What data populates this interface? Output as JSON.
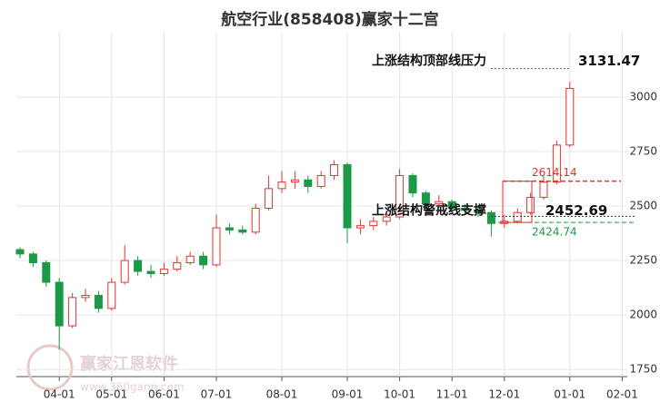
{
  "chart_data": {
    "type": "candlestick",
    "title": "航空行业(858408)赢家十二宫",
    "categories": [
      null,
      null,
      null,
      "04-01",
      null,
      null,
      null,
      "05-01",
      null,
      null,
      null,
      "06-01",
      null,
      null,
      null,
      "07-01",
      null,
      null,
      null,
      null,
      "08-01",
      null,
      null,
      null,
      null,
      "09-01",
      null,
      null,
      null,
      "10-01",
      null,
      null,
      null,
      "11-01",
      null,
      null,
      null,
      "12-01",
      null,
      null,
      null,
      null,
      "01-01",
      null,
      null,
      null,
      "02-01"
    ],
    "candles": [
      [
        2300,
        2310,
        2260,
        2280
      ],
      [
        2280,
        2290,
        2220,
        2240
      ],
      [
        2240,
        2250,
        2130,
        2150
      ],
      [
        2150,
        2170,
        1840,
        1950
      ],
      [
        1950,
        2100,
        1940,
        2080
      ],
      [
        2080,
        2120,
        2060,
        2090
      ],
      [
        2090,
        2110,
        2010,
        2030
      ],
      [
        2030,
        2170,
        2020,
        2150
      ],
      [
        2150,
        2320,
        2140,
        2250
      ],
      [
        2250,
        2270,
        2180,
        2200
      ],
      [
        2200,
        2230,
        2170,
        2190
      ],
      [
        2190,
        2240,
        2180,
        2210
      ],
      [
        2210,
        2270,
        2200,
        2240
      ],
      [
        2240,
        2290,
        2230,
        2270
      ],
      [
        2270,
        2290,
        2210,
        2230
      ],
      [
        2230,
        2460,
        2220,
        2400
      ],
      [
        2400,
        2420,
        2370,
        2390
      ],
      [
        2390,
        2410,
        2370,
        2380
      ],
      [
        2380,
        2510,
        2370,
        2490
      ],
      [
        2490,
        2640,
        2480,
        2580
      ],
      [
        2580,
        2660,
        2560,
        2610
      ],
      [
        2610,
        2660,
        2580,
        2620
      ],
      [
        2620,
        2640,
        2560,
        2590
      ],
      [
        2590,
        2660,
        2580,
        2640
      ],
      [
        2640,
        2710,
        2620,
        2690
      ],
      [
        2690,
        2700,
        2330,
        2400
      ],
      [
        2400,
        2440,
        2370,
        2410
      ],
      [
        2410,
        2450,
        2390,
        2430
      ],
      [
        2430,
        2470,
        2410,
        2450
      ],
      [
        2450,
        2670,
        2440,
        2640
      ],
      [
        2640,
        2650,
        2540,
        2560
      ],
      [
        2560,
        2570,
        2490,
        2510
      ],
      [
        2510,
        2550,
        2490,
        2520
      ],
      [
        2520,
        2530,
        2460,
        2490
      ],
      [
        2490,
        2510,
        2460,
        2480
      ],
      [
        2480,
        2500,
        2450,
        2470
      ],
      [
        2470,
        2480,
        2360,
        2420
      ],
      [
        2420,
        2460,
        2400,
        2430
      ],
      [
        2430,
        2490,
        2420,
        2470
      ],
      [
        2470,
        2560,
        2460,
        2540
      ],
      [
        2540,
        2640,
        2530,
        2610
      ],
      [
        2610,
        2800,
        2600,
        2780
      ],
      [
        2780,
        3070,
        2770,
        3040
      ],
      null,
      null,
      null,
      null
    ],
    "up_color": "#e8312f",
    "down_color": "#1a9a46",
    "ylim": [
      1717,
      3300
    ],
    "yticks": [
      1750,
      2000,
      2250,
      2500,
      2750,
      3000
    ],
    "grid": true,
    "levels": [
      {
        "label": "上涨结构顶部线压力",
        "value": 3131.47,
        "color": "#e8312f"
      },
      {
        "label": "上涨结构警戒线支撑",
        "value": 2452.69,
        "color": "#333333"
      },
      {
        "value": 2614.14,
        "color": "#e8312f"
      },
      {
        "value": 2424.74,
        "color": "#1a9a46"
      }
    ],
    "watermark": [
      "赢家江恩软件",
      "www.360gann.com"
    ]
  }
}
